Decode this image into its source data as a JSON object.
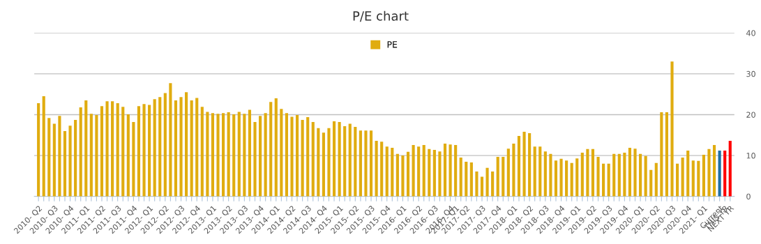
{
  "chart_data": {
    "type": "bar",
    "title": "P/E chart",
    "categories": [
      "2010- Q2",
      null,
      null,
      "2010- Q3",
      null,
      null,
      "2010- Q4",
      null,
      null,
      "2011- Q1",
      null,
      null,
      "2011- Q2",
      null,
      null,
      "2011- Q3",
      null,
      null,
      "2011- Q4",
      null,
      null,
      "2012- Q1",
      null,
      null,
      "2012- Q2",
      null,
      null,
      "2012- Q3",
      null,
      null,
      "2012- Q4",
      null,
      null,
      "2013- Q1",
      null,
      null,
      "2013- Q2",
      null,
      null,
      "2013- Q3",
      null,
      null,
      "2013- Q4",
      null,
      null,
      "2014- Q1",
      null,
      null,
      "2014- Q2",
      null,
      null,
      "2014- Q3",
      null,
      null,
      "2014- Q4",
      null,
      null,
      "2015- Q1",
      null,
      null,
      "2015- Q2",
      null,
      null,
      "2015- Q3",
      null,
      null,
      "2015- Q4",
      null,
      null,
      "2016- Q1",
      null,
      null,
      "2016- Q2",
      null,
      null,
      "2016- Q3",
      null,
      null,
      "2016- Q4",
      "2017- Q1",
      null,
      "2017- Q2",
      null,
      null,
      "2017- Q3",
      null,
      null,
      "2017- Q4",
      null,
      null,
      "2018- Q1",
      null,
      null,
      "2018- Q2",
      null,
      null,
      "2018- Q3",
      null,
      null,
      "2018- Q4",
      null,
      null,
      "2019- Q1",
      null,
      null,
      "2019- Q2",
      null,
      null,
      "2019- Q3",
      null,
      null,
      "2019- Q4",
      null,
      null,
      "2020- Q1",
      null,
      null,
      "2020- Q2",
      null,
      null,
      "2020- Q3",
      null,
      null,
      "2020- Q4",
      null,
      null,
      "2021- Q1",
      null,
      null,
      "Current",
      "THIS YR",
      "NEXT YR"
    ],
    "series": [
      {
        "name": "PE",
        "color": "#e0ac10",
        "colors": [
          "#e0ac10",
          "#e0ac10",
          "#e0ac10",
          "#e0ac10",
          "#e0ac10",
          "#e0ac10",
          "#e0ac10",
          "#e0ac10",
          "#e0ac10",
          "#e0ac10",
          "#e0ac10",
          "#e0ac10",
          "#e0ac10",
          "#e0ac10",
          "#e0ac10",
          "#e0ac10",
          "#e0ac10",
          "#e0ac10",
          "#e0ac10",
          "#e0ac10",
          "#e0ac10",
          "#e0ac10",
          "#e0ac10",
          "#e0ac10",
          "#e0ac10",
          "#e0ac10",
          "#e0ac10",
          "#e0ac10",
          "#e0ac10",
          "#e0ac10",
          "#e0ac10",
          "#e0ac10",
          "#e0ac10",
          "#e0ac10",
          "#e0ac10",
          "#e0ac10",
          "#e0ac10",
          "#e0ac10",
          "#e0ac10",
          "#e0ac10",
          "#e0ac10",
          "#e0ac10",
          "#e0ac10",
          "#e0ac10",
          "#e0ac10",
          "#e0ac10",
          "#e0ac10",
          "#e0ac10",
          "#e0ac10",
          "#e0ac10",
          "#e0ac10",
          "#e0ac10",
          "#e0ac10",
          "#e0ac10",
          "#e0ac10",
          "#e0ac10",
          "#e0ac10",
          "#e0ac10",
          "#e0ac10",
          "#e0ac10",
          "#e0ac10",
          "#e0ac10",
          "#e0ac10",
          "#e0ac10",
          "#e0ac10",
          "#e0ac10",
          "#e0ac10",
          "#e0ac10",
          "#e0ac10",
          "#e0ac10",
          "#e0ac10",
          "#e0ac10",
          "#e0ac10",
          "#e0ac10",
          "#e0ac10",
          "#e0ac10",
          "#e0ac10",
          "#e0ac10",
          "#e0ac10",
          "#e0ac10",
          "#e0ac10",
          "#e0ac10",
          "#e0ac10",
          "#e0ac10",
          "#e0ac10",
          "#e0ac10",
          "#e0ac10",
          "#e0ac10",
          "#e0ac10",
          "#e0ac10",
          "#e0ac10",
          "#e0ac10",
          "#e0ac10",
          "#e0ac10",
          "#e0ac10",
          "#e0ac10",
          "#e0ac10",
          "#e0ac10",
          "#e0ac10",
          "#e0ac10",
          "#e0ac10",
          "#e0ac10",
          "#e0ac10",
          "#e0ac10",
          "#e0ac10",
          "#e0ac10",
          "#e0ac10",
          "#e0ac10",
          "#e0ac10",
          "#e0ac10",
          "#e0ac10",
          "#e0ac10",
          "#e0ac10",
          "#e0ac10",
          "#e0ac10",
          "#e0ac10",
          "#e0ac10",
          "#e0ac10",
          "#e0ac10",
          "#e0ac10",
          "#e0ac10",
          "#e0ac10",
          "#e0ac10",
          "#e0ac10",
          "#e0ac10",
          "#e0ac10",
          "#e0ac10",
          "#e0ac10",
          "#e0ac10",
          "#1f6fa3",
          "#ff0000",
          "#ff0000"
        ],
        "values": [
          22.8,
          24.5,
          19.2,
          17.8,
          19.7,
          16.0,
          17.3,
          18.7,
          21.8,
          23.5,
          20.2,
          19.9,
          22.1,
          23.3,
          23.3,
          22.8,
          21.9,
          20.1,
          18.2,
          22.1,
          22.6,
          22.4,
          23.8,
          24.3,
          25.3,
          27.7,
          23.5,
          24.3,
          25.5,
          23.5,
          24.1,
          21.9,
          20.7,
          20.4,
          20.2,
          20.4,
          20.6,
          20.1,
          20.7,
          20.2,
          21.2,
          18.2,
          19.7,
          20.4,
          23.1,
          24.0,
          21.4,
          20.4,
          19.5,
          19.9,
          18.7,
          19.4,
          18.2,
          16.7,
          15.6,
          16.7,
          18.4,
          18.2,
          17.2,
          17.8,
          17.0,
          16.1,
          16.1,
          16.1,
          13.6,
          13.4,
          12.2,
          11.9,
          10.4,
          10.0,
          10.9,
          12.6,
          12.2,
          12.6,
          11.6,
          11.4,
          11.0,
          12.9,
          12.7,
          12.6,
          9.5,
          8.5,
          8.3,
          6.1,
          4.8,
          7.0,
          6.1,
          9.7,
          9.7,
          11.7,
          12.9,
          14.8,
          15.8,
          15.5,
          12.2,
          12.2,
          11.0,
          10.4,
          8.8,
          9.2,
          8.8,
          8.2,
          9.3,
          10.7,
          11.6,
          11.6,
          9.7,
          8.0,
          8.0,
          10.4,
          10.4,
          10.7,
          11.9,
          11.7,
          10.4,
          9.9,
          6.5,
          8.2,
          20.6,
          20.6,
          33.0,
          8.0,
          9.5,
          11.2,
          8.8,
          8.7,
          10.2,
          11.6,
          12.6,
          11.2,
          11.2,
          13.6
        ]
      }
    ],
    "ylim": [
      0,
      40
    ],
    "yticks": [
      0,
      10,
      20,
      30,
      40
    ],
    "grid": "y",
    "legend": "top"
  }
}
